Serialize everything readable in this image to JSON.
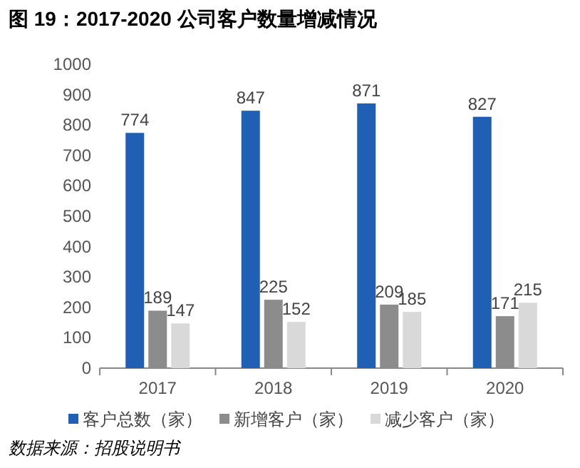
{
  "chart_data": {
    "type": "bar",
    "title": "图 19：2017-2020 公司客户数量增减情况",
    "categories": [
      "2017",
      "2018",
      "2019",
      "2020"
    ],
    "series": [
      {
        "name": "客户总数（家）",
        "color": "#1f5fb4",
        "values": [
          774,
          847,
          871,
          827
        ]
      },
      {
        "name": "新增客户（家）",
        "color": "#8c8c8c",
        "values": [
          189,
          225,
          209,
          171
        ]
      },
      {
        "name": "减少客户（家）",
        "color": "#d9d9d9",
        "values": [
          147,
          152,
          185,
          215
        ]
      }
    ],
    "ylim": [
      0,
      1000
    ],
    "yticks": [
      0,
      100,
      200,
      300,
      400,
      500,
      600,
      700,
      800,
      900,
      1000
    ],
    "grid": false,
    "data_labels": true,
    "legend": "bottom",
    "annotations": [
      "数据来源：招股说明书"
    ]
  }
}
